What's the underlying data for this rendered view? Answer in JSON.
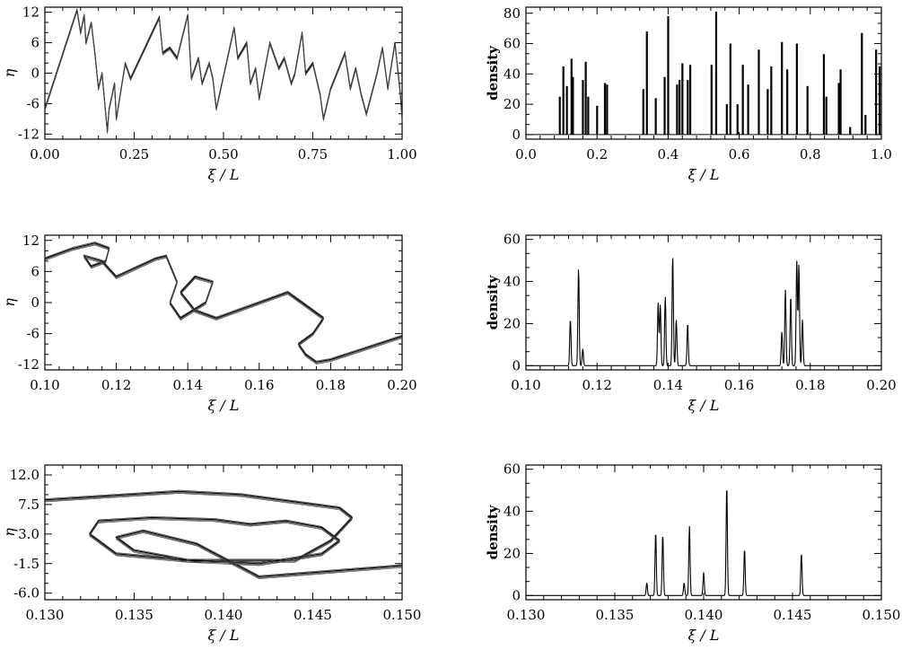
{
  "chart_data": [
    {
      "id": "phase-full",
      "type": "line",
      "xlabel": "ξ / L",
      "ylabel": "η",
      "xlim": [
        0,
        1
      ],
      "ylim": [
        -13,
        13
      ],
      "xticks": [
        0,
        0.25,
        0.5,
        0.75,
        1.0
      ],
      "xtick_labels": [
        "0.00",
        "0.25",
        "0.50",
        "0.75",
        "1.00"
      ],
      "yticks": [
        -12,
        -6,
        0,
        6,
        12
      ],
      "ytick_labels": [
        "-12",
        "-6",
        "0",
        "6",
        "12"
      ],
      "series": [
        {
          "x": [
            0.0,
            0.09,
            0.1,
            0.11,
            0.115,
            0.13,
            0.14,
            0.15,
            0.16,
            0.175,
            0.18,
            0.195,
            0.2,
            0.225,
            0.24,
            0.32,
            0.33,
            0.35,
            0.37,
            0.4,
            0.41,
            0.43,
            0.44,
            0.46,
            0.47,
            0.48,
            0.53,
            0.54,
            0.565,
            0.575,
            0.59,
            0.6,
            0.63,
            0.655,
            0.67,
            0.69,
            0.7,
            0.72,
            0.73,
            0.75,
            0.77,
            0.78,
            0.8,
            0.84,
            0.855,
            0.87,
            0.885,
            0.9,
            0.93,
            0.945,
            0.96,
            0.98,
            0.995,
            1.0
          ],
          "y": [
            -7,
            12.5,
            8,
            11.5,
            6,
            10,
            4,
            -3,
            0,
            -11.5,
            -7,
            -2,
            -9,
            2,
            -1,
            11,
            4,
            5,
            3,
            11.5,
            -1,
            3,
            -2,
            2,
            -1,
            -7,
            9,
            3,
            6,
            -2,
            1,
            -5,
            6,
            1,
            3,
            -2,
            0,
            8,
            0,
            2,
            -4,
            -9,
            -3,
            4,
            -3,
            1,
            -4,
            -8,
            0,
            5,
            -3,
            6,
            -4,
            -9
          ]
        }
      ]
    },
    {
      "id": "density-full",
      "type": "bar",
      "xlabel": "ξ / L",
      "ylabel": "density",
      "xlim": [
        0,
        1
      ],
      "ylim": [
        -3,
        84
      ],
      "xticks": [
        0,
        0.2,
        0.4,
        0.6,
        0.8,
        1.0
      ],
      "xtick_labels": [
        "0.0",
        "0.2",
        "0.4",
        "0.6",
        "0.8",
        "1.0"
      ],
      "yticks": [
        0,
        20,
        40,
        60,
        80
      ],
      "ytick_labels": [
        "0",
        "20",
        "40",
        "60",
        "80"
      ],
      "x": [
        0.095,
        0.105,
        0.115,
        0.128,
        0.132,
        0.16,
        0.168,
        0.175,
        0.2,
        0.222,
        0.228,
        0.33,
        0.34,
        0.365,
        0.39,
        0.4,
        0.425,
        0.432,
        0.44,
        0.455,
        0.462,
        0.522,
        0.535,
        0.565,
        0.575,
        0.595,
        0.61,
        0.625,
        0.655,
        0.68,
        0.69,
        0.72,
        0.735,
        0.762,
        0.792,
        0.838,
        0.845,
        0.88,
        0.885,
        0.912,
        0.945,
        0.955,
        0.985,
        0.995
      ],
      "values": [
        25,
        45,
        32,
        50,
        38,
        36,
        48,
        25,
        19,
        34,
        33,
        30,
        68,
        24,
        38,
        78,
        33,
        36,
        47,
        36,
        46,
        46,
        81,
        20,
        60,
        20,
        46,
        33,
        56,
        30,
        45,
        61,
        43,
        60,
        32,
        53,
        25,
        34,
        43,
        5,
        67,
        13,
        56,
        45
      ]
    },
    {
      "id": "phase-zoom1",
      "type": "line",
      "xlabel": "ξ / L",
      "ylabel": "η",
      "xlim": [
        0.1,
        0.2
      ],
      "ylim": [
        -13,
        13
      ],
      "xticks": [
        0.1,
        0.12,
        0.14,
        0.16,
        0.18,
        0.2
      ],
      "xtick_labels": [
        "0.10",
        "0.12",
        "0.14",
        "0.16",
        "0.18",
        "0.20"
      ],
      "yticks": [
        -12,
        -6,
        0,
        6,
        12
      ],
      "ytick_labels": [
        "-12",
        "-6",
        "0",
        "6",
        "12"
      ],
      "series": [
        {
          "x": [
            0.1,
            0.108,
            0.114,
            0.118,
            0.117,
            0.113,
            0.111,
            0.116,
            0.12,
            0.131,
            0.134,
            0.137,
            0.135,
            0.138,
            0.145,
            0.147,
            0.142,
            0.138,
            0.142,
            0.148,
            0.168,
            0.172,
            0.178,
            0.175,
            0.171,
            0.173,
            0.176,
            0.18,
            0.2
          ],
          "y": [
            8.5,
            10.5,
            11.5,
            10.5,
            8,
            7,
            9,
            8,
            5,
            8.5,
            9,
            4,
            0,
            -3,
            0,
            4,
            5,
            2,
            -1.5,
            -3,
            2,
            0,
            -3,
            -6,
            -8,
            -10,
            -11.5,
            -11,
            -6.5
          ]
        }
      ]
    },
    {
      "id": "density-zoom1",
      "type": "line",
      "xlabel": "ξ / L",
      "ylabel": "density",
      "xlim": [
        0.1,
        0.2
      ],
      "ylim": [
        -2,
        62
      ],
      "xticks": [
        0.1,
        0.12,
        0.14,
        0.16,
        0.18,
        0.2
      ],
      "xtick_labels": [
        "0.10",
        "0.12",
        "0.14",
        "0.16",
        "0.18",
        "0.20"
      ],
      "yticks": [
        0,
        20,
        40,
        60
      ],
      "ytick_labels": [
        "0",
        "20",
        "40",
        "60"
      ],
      "peaks": [
        {
          "x": 0.1125,
          "value": 22
        },
        {
          "x": 0.1148,
          "value": 46
        },
        {
          "x": 0.116,
          "value": 8
        },
        {
          "x": 0.1372,
          "value": 30
        },
        {
          "x": 0.1378,
          "value": 29
        },
        {
          "x": 0.1392,
          "value": 33
        },
        {
          "x": 0.1413,
          "value": 52
        },
        {
          "x": 0.1423,
          "value": 22
        },
        {
          "x": 0.1455,
          "value": 20
        },
        {
          "x": 0.172,
          "value": 16
        },
        {
          "x": 0.173,
          "value": 36
        },
        {
          "x": 0.1745,
          "value": 33
        },
        {
          "x": 0.1762,
          "value": 50
        },
        {
          "x": 0.1768,
          "value": 48
        },
        {
          "x": 0.1778,
          "value": 22
        }
      ]
    },
    {
      "id": "phase-zoom2",
      "type": "line",
      "xlabel": "ξ / L",
      "ylabel": "η",
      "xlim": [
        0.13,
        0.15
      ],
      "ylim": [
        -7,
        13.5
      ],
      "xticks": [
        0.13,
        0.135,
        0.14,
        0.145,
        0.15
      ],
      "xtick_labels": [
        "0.130",
        "0.135",
        "0.140",
        "0.145",
        "0.150"
      ],
      "yticks": [
        -6,
        -1.5,
        3,
        7.5,
        12
      ],
      "ytick_labels": [
        "-6.0",
        "-1.5",
        "3.0",
        "7.5",
        "12.0"
      ],
      "series": [
        {
          "x": [
            0.13,
            0.1375,
            0.141,
            0.1465,
            0.1472,
            0.146,
            0.144,
            0.138,
            0.134,
            0.1325,
            0.133,
            0.136,
            0.1395,
            0.1415,
            0.1435,
            0.1455,
            0.1465,
            0.1455,
            0.142,
            0.138,
            0.135,
            0.134,
            0.1355,
            0.1385,
            0.142,
            0.15
          ],
          "y": [
            8.2,
            9.5,
            9,
            7,
            5.5,
            2,
            -1,
            -1,
            0,
            3,
            5,
            5.5,
            5.2,
            4.5,
            5,
            4,
            2,
            0,
            -1.5,
            -1,
            0.5,
            2.5,
            3.5,
            1.5,
            -3.5,
            -1.8
          ]
        }
      ]
    },
    {
      "id": "density-zoom2",
      "type": "line",
      "xlabel": "ξ / L",
      "ylabel": "density",
      "xlim": [
        0.13,
        0.15
      ],
      "ylim": [
        -2,
        62
      ],
      "xticks": [
        0.13,
        0.135,
        0.14,
        0.145,
        0.15
      ],
      "xtick_labels": [
        "0.130",
        "0.135",
        "0.140",
        "0.145",
        "0.150"
      ],
      "yticks": [
        0,
        20,
        40,
        60
      ],
      "ytick_labels": [
        "0",
        "20",
        "40",
        "60"
      ],
      "peaks": [
        {
          "x": 0.1368,
          "value": 6
        },
        {
          "x": 0.1373,
          "value": 30
        },
        {
          "x": 0.1377,
          "value": 29
        },
        {
          "x": 0.1389,
          "value": 6
        },
        {
          "x": 0.1392,
          "value": 33
        },
        {
          "x": 0.14,
          "value": 11
        },
        {
          "x": 0.1413,
          "value": 52
        },
        {
          "x": 0.1423,
          "value": 22
        },
        {
          "x": 0.1455,
          "value": 20
        }
      ]
    }
  ]
}
